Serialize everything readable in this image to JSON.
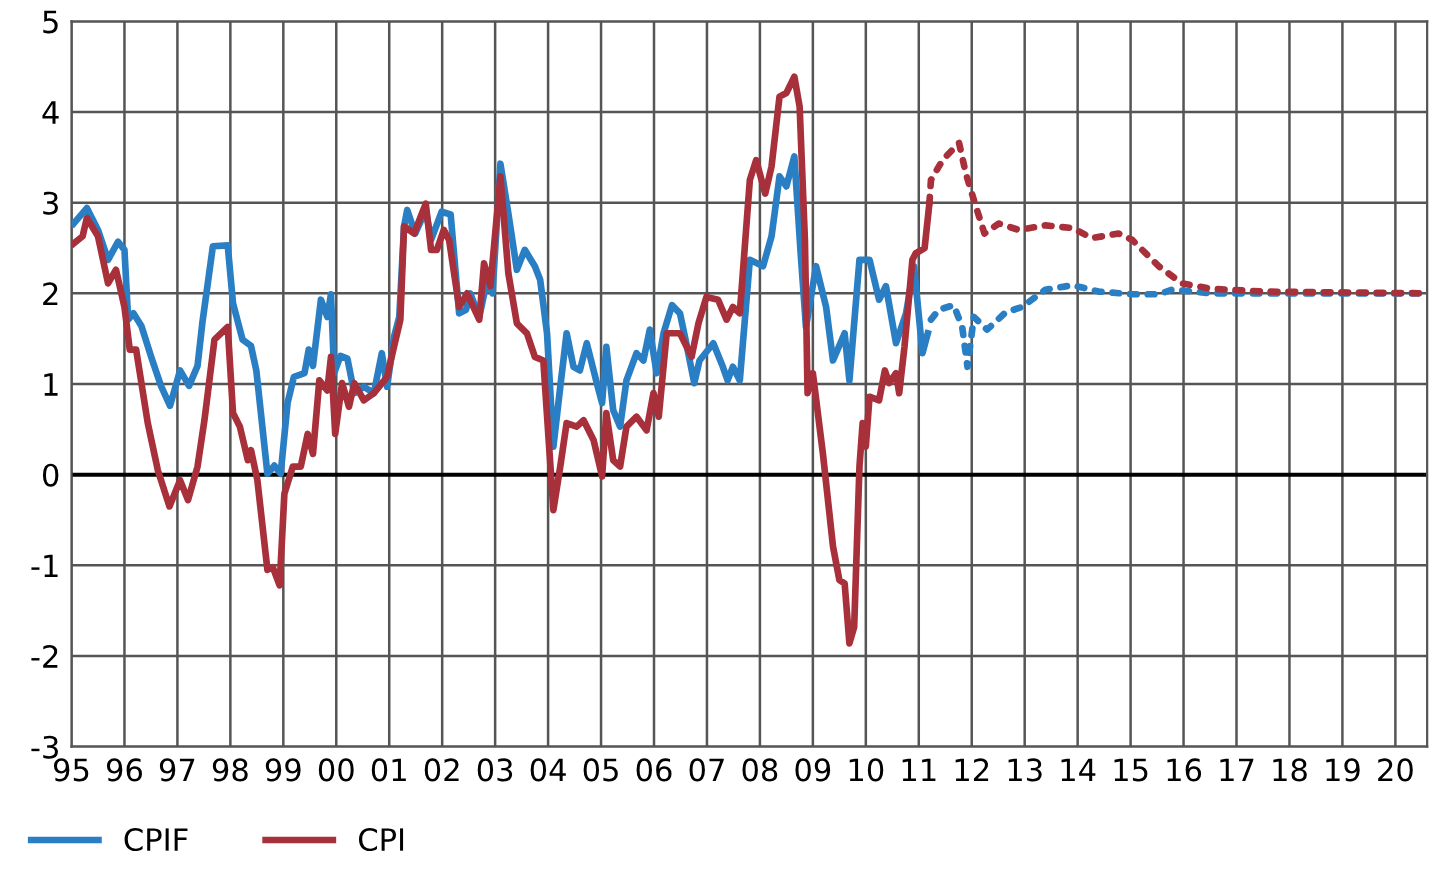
{
  "chart_data": {
    "type": "line",
    "xlim": [
      1995,
      2020.6
    ],
    "ylim": [
      -3,
      5
    ],
    "xticks": [
      {
        "value": 1995,
        "label": "95"
      },
      {
        "value": 1996,
        "label": "96"
      },
      {
        "value": 1997,
        "label": "97"
      },
      {
        "value": 1998,
        "label": "98"
      },
      {
        "value": 1999,
        "label": "99"
      },
      {
        "value": 2000,
        "label": "00"
      },
      {
        "value": 2001,
        "label": "01"
      },
      {
        "value": 2002,
        "label": "02"
      },
      {
        "value": 2003,
        "label": "03"
      },
      {
        "value": 2004,
        "label": "04"
      },
      {
        "value": 2005,
        "label": "05"
      },
      {
        "value": 2006,
        "label": "06"
      },
      {
        "value": 2007,
        "label": "07"
      },
      {
        "value": 2008,
        "label": "08"
      },
      {
        "value": 2009,
        "label": "09"
      },
      {
        "value": 2010,
        "label": "10"
      },
      {
        "value": 2011,
        "label": "11"
      },
      {
        "value": 2012,
        "label": "12"
      },
      {
        "value": 2013,
        "label": "13"
      },
      {
        "value": 2014,
        "label": "14"
      },
      {
        "value": 2015,
        "label": "15"
      },
      {
        "value": 2016,
        "label": "16"
      },
      {
        "value": 2017,
        "label": "17"
      },
      {
        "value": 2018,
        "label": "18"
      },
      {
        "value": 2019,
        "label": "19"
      },
      {
        "value": 2020,
        "label": "20"
      }
    ],
    "yticks": [
      -3,
      -2,
      -1,
      0,
      1,
      2,
      3,
      4,
      5
    ],
    "grid": true,
    "legend": "bottom left",
    "marker": "none",
    "ref_lines": [
      {
        "axis": "y",
        "value": 0,
        "color": "#000000"
      }
    ],
    "series": [
      {
        "name": "CPIF",
        "color": "#2a7fc4",
        "line_style": "solid",
        "x": [
          1995.04,
          1995.29,
          1995.5,
          1995.69,
          1995.88,
          1996.0,
          1996.07,
          1996.17,
          1996.32,
          1996.51,
          1996.69,
          1996.86,
          1997.05,
          1997.22,
          1997.38,
          1997.47,
          1997.67,
          1997.95,
          1998.05,
          1998.23,
          1998.39,
          1998.49,
          1998.7,
          1998.83,
          1998.95,
          1999.08,
          1999.2,
          1999.4,
          1999.48,
          1999.56,
          1999.71,
          1999.83,
          1999.9,
          1999.96,
          2000.08,
          2000.21,
          2000.34,
          2000.52,
          2000.71,
          2000.86,
          2000.96,
          2001.09,
          2001.19,
          2001.28,
          2001.34,
          2001.49,
          2001.69,
          2001.79,
          2001.99,
          2002.16,
          2002.32,
          2002.45,
          2002.53,
          2002.7,
          2002.85,
          2002.95,
          2003.1,
          2003.25,
          2003.41,
          2003.56,
          2003.75,
          2003.85,
          2003.98,
          2004.1,
          2004.23,
          2004.35,
          2004.48,
          2004.6,
          2004.73,
          2004.92,
          2005.02,
          2005.1,
          2005.23,
          2005.36,
          2005.48,
          2005.67,
          2005.8,
          2005.92,
          2006.05,
          2006.18,
          2006.34,
          2006.49,
          2006.61,
          2006.76,
          2006.86,
          2007.12,
          2007.3,
          2007.39,
          2007.49,
          2007.62,
          2007.81,
          2008.06,
          2008.22,
          2008.37,
          2008.5,
          2008.65,
          2008.77,
          2008.87,
          2009.06,
          2009.25,
          2009.38,
          2009.6,
          2009.69,
          2009.88,
          2010.07,
          2010.25,
          2010.38,
          2010.57,
          2010.76,
          2010.91,
          2011.07,
          2011.17
        ],
        "values": [
          2.77,
          2.94,
          2.7,
          2.37,
          2.57,
          2.48,
          1.71,
          1.78,
          1.64,
          1.29,
          0.98,
          0.76,
          1.15,
          0.98,
          1.2,
          1.67,
          2.52,
          2.53,
          1.89,
          1.49,
          1.42,
          1.15,
          0.01,
          0.1,
          0.01,
          0.79,
          1.08,
          1.12,
          1.38,
          1.2,
          1.93,
          1.74,
          1.99,
          1.12,
          1.31,
          1.28,
          0.9,
          0.97,
          0.9,
          1.34,
          0.97,
          1.52,
          1.74,
          2.74,
          2.92,
          2.66,
          2.92,
          2.59,
          2.9,
          2.87,
          1.78,
          1.82,
          2.0,
          1.74,
          2.15,
          2.0,
          3.43,
          2.88,
          2.26,
          2.48,
          2.3,
          2.15,
          1.56,
          0.31,
          0.97,
          1.56,
          1.19,
          1.15,
          1.45,
          1.01,
          0.79,
          1.41,
          0.71,
          0.53,
          1.04,
          1.34,
          1.26,
          1.6,
          1.12,
          1.56,
          1.87,
          1.78,
          1.45,
          1.01,
          1.26,
          1.45,
          1.19,
          1.04,
          1.19,
          1.04,
          2.37,
          2.3,
          2.63,
          3.29,
          3.18,
          3.51,
          2.44,
          1.63,
          2.3,
          1.85,
          1.26,
          1.56,
          1.04,
          2.37,
          2.37,
          1.93,
          2.08,
          1.45,
          1.78,
          2.3,
          1.34,
          1.56
        ]
      },
      {
        "name": "CPI",
        "color": "#a8303a",
        "line_style": "solid",
        "x": [
          1995.04,
          1995.21,
          1995.29,
          1995.5,
          1995.69,
          1995.84,
          1996.0,
          1996.1,
          1996.22,
          1996.44,
          1996.63,
          1996.85,
          1997.05,
          1997.2,
          1997.38,
          1997.51,
          1997.7,
          1997.95,
          1998.05,
          1998.18,
          1998.33,
          1998.39,
          1998.51,
          1998.7,
          1998.8,
          1998.93,
          1999.02,
          1999.18,
          1999.33,
          1999.46,
          1999.56,
          1999.68,
          1999.83,
          1999.9,
          1999.98,
          2000.11,
          2000.24,
          2000.34,
          2000.52,
          2000.71,
          2000.96,
          2001.09,
          2001.21,
          2001.28,
          2001.47,
          2001.69,
          2001.79,
          2001.9,
          2002.03,
          2002.13,
          2002.32,
          2002.47,
          2002.7,
          2002.79,
          2002.91,
          2003.1,
          2003.25,
          2003.41,
          2003.6,
          2003.75,
          2003.91,
          2004.1,
          2004.23,
          2004.35,
          2004.54,
          2004.67,
          2004.86,
          2005.02,
          2005.1,
          2005.23,
          2005.36,
          2005.48,
          2005.67,
          2005.86,
          2005.99,
          2006.09,
          2006.24,
          2006.49,
          2006.71,
          2006.84,
          2006.99,
          2007.21,
          2007.37,
          2007.49,
          2007.62,
          2007.81,
          2007.93,
          2008.1,
          2008.22,
          2008.37,
          2008.5,
          2008.65,
          2008.75,
          2008.85,
          2008.9,
          2009.0,
          2009.19,
          2009.38,
          2009.5,
          2009.6,
          2009.69,
          2009.78,
          2009.88,
          2009.94,
          2010.0,
          2010.07,
          2010.25,
          2010.36,
          2010.44,
          2010.57,
          2010.63,
          2010.73,
          2010.88,
          2010.94,
          2011.11,
          2011.2
        ],
        "values": [
          2.55,
          2.63,
          2.83,
          2.63,
          2.11,
          2.26,
          1.85,
          1.38,
          1.38,
          0.57,
          0.05,
          -0.35,
          -0.06,
          -0.28,
          0.09,
          0.6,
          1.49,
          1.63,
          0.68,
          0.53,
          0.16,
          0.27,
          -0.06,
          -1.05,
          -1.02,
          -1.22,
          -0.21,
          0.09,
          0.09,
          0.45,
          0.23,
          1.04,
          0.93,
          1.3,
          0.45,
          1.01,
          0.75,
          1.01,
          0.82,
          0.9,
          1.08,
          1.41,
          1.71,
          2.74,
          2.66,
          2.99,
          2.48,
          2.48,
          2.7,
          2.59,
          1.85,
          2.0,
          1.71,
          2.33,
          2.08,
          3.29,
          2.22,
          1.67,
          1.56,
          1.3,
          1.26,
          -0.39,
          0.09,
          0.57,
          0.53,
          0.6,
          0.38,
          -0.02,
          0.68,
          0.16,
          0.09,
          0.53,
          0.64,
          0.49,
          0.9,
          0.64,
          1.56,
          1.56,
          1.3,
          1.67,
          1.96,
          1.93,
          1.71,
          1.85,
          1.78,
          3.25,
          3.47,
          3.1,
          3.4,
          4.17,
          4.21,
          4.39,
          4.06,
          2.59,
          0.9,
          1.12,
          0.23,
          -0.79,
          -1.16,
          -1.2,
          -1.86,
          -1.68,
          0.09,
          0.57,
          0.31,
          0.86,
          0.82,
          1.15,
          1.01,
          1.12,
          0.9,
          1.41,
          2.37,
          2.44,
          2.5,
          2.99
        ]
      },
      {
        "color": "#2a7fc4",
        "line_style": "dotted",
        "x": [
          2011.23,
          2011.38,
          2011.66,
          2011.82,
          2011.92,
          2012.04,
          2012.29,
          2012.64,
          2012.95,
          2013.39,
          2013.9,
          2014.4,
          2015.03,
          2015.53,
          2015.78,
          2016.53,
          2020.6
        ],
        "values": [
          1.71,
          1.82,
          1.87,
          1.63,
          1.19,
          1.74,
          1.6,
          1.79,
          1.85,
          2.04,
          2.09,
          2.02,
          1.99,
          1.99,
          2.04,
          2.0,
          2.0
        ]
      },
      {
        "color": "#a8303a",
        "line_style": "dotted",
        "x": [
          2011.2,
          2011.23,
          2011.45,
          2011.76,
          2011.89,
          2012.04,
          2012.24,
          2012.51,
          2012.89,
          2013.39,
          2013.9,
          2014.27,
          2014.77,
          2015.03,
          2015.53,
          2015.97,
          2016.53,
          2017.5,
          2020.6
        ],
        "values": [
          2.99,
          3.25,
          3.47,
          3.66,
          3.32,
          3.03,
          2.66,
          2.77,
          2.7,
          2.75,
          2.72,
          2.61,
          2.66,
          2.59,
          2.3,
          2.11,
          2.05,
          2.02,
          2.0
        ]
      }
    ]
  }
}
